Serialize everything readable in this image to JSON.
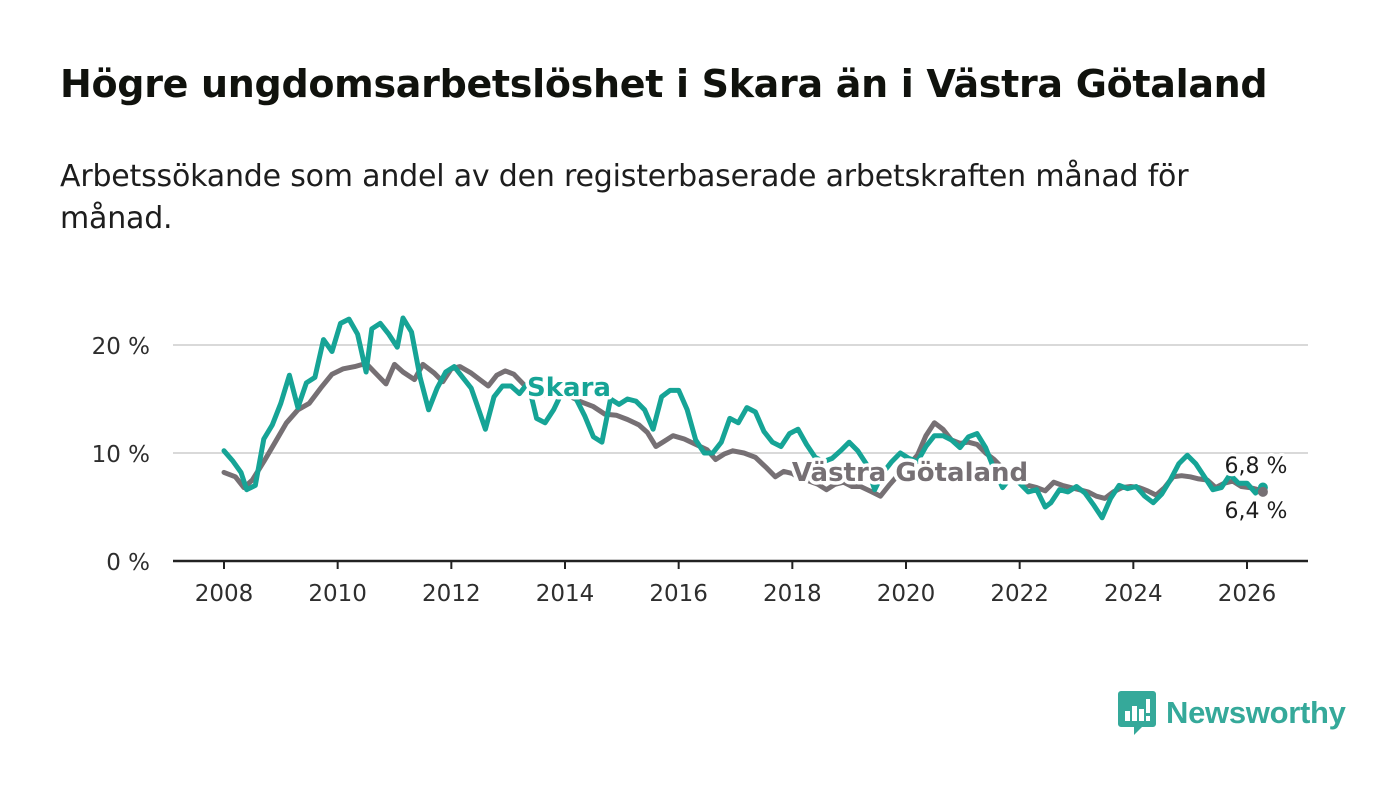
{
  "title": "Högre ungdomsarbetslöshet i Skara än i Västra Götaland",
  "subtitle": "Arbetssökande som andel av den registerbaserade arbetskraften månad för månad.",
  "brand": {
    "name": "Newsworthy",
    "color": "#35a99a"
  },
  "chart_data": {
    "type": "line",
    "title": "Högre ungdomsarbetslöshet i Skara än i Västra Götaland",
    "xlabel": "",
    "ylabel": "",
    "xlim": [
      2007.1,
      2027.1
    ],
    "ylim": [
      0,
      22
    ],
    "x_ticks": [
      2008,
      2010,
      2012,
      2014,
      2016,
      2018,
      2020,
      2022,
      2024,
      2026
    ],
    "y_ticks": [
      0,
      10,
      20
    ],
    "y_tick_labels": [
      "0 %",
      "10 %",
      "20 %"
    ],
    "grid": true,
    "series": [
      {
        "name": "Västra Götaland",
        "color": "#767074",
        "label": "Västra Götaland",
        "end_label": "6,4 %",
        "points": [
          [
            2008.0,
            8.2
          ],
          [
            2008.2,
            7.8
          ],
          [
            2008.35,
            6.8
          ],
          [
            2008.5,
            7.5
          ],
          [
            2008.7,
            9.2
          ],
          [
            2008.9,
            11.0
          ],
          [
            2009.1,
            12.8
          ],
          [
            2009.3,
            14.0
          ],
          [
            2009.5,
            14.6
          ],
          [
            2009.7,
            16.0
          ],
          [
            2009.9,
            17.3
          ],
          [
            2010.1,
            17.8
          ],
          [
            2010.3,
            18.0
          ],
          [
            2010.5,
            18.3
          ],
          [
            2010.7,
            17.2
          ],
          [
            2010.85,
            16.4
          ],
          [
            2011.0,
            18.2
          ],
          [
            2011.15,
            17.5
          ],
          [
            2011.35,
            16.8
          ],
          [
            2011.5,
            18.2
          ],
          [
            2011.7,
            17.4
          ],
          [
            2011.85,
            16.6
          ],
          [
            2012.0,
            17.8
          ],
          [
            2012.15,
            18.0
          ],
          [
            2012.35,
            17.4
          ],
          [
            2012.5,
            16.8
          ],
          [
            2012.65,
            16.2
          ],
          [
            2012.8,
            17.2
          ],
          [
            2012.95,
            17.6
          ],
          [
            2013.1,
            17.3
          ],
          [
            2013.3,
            16.2
          ],
          [
            2013.5,
            15.6
          ],
          [
            2013.7,
            15.3
          ],
          [
            2013.9,
            15.6
          ],
          [
            2014.1,
            15.2
          ],
          [
            2014.3,
            14.7
          ],
          [
            2014.5,
            14.3
          ],
          [
            2014.7,
            13.6
          ],
          [
            2014.9,
            13.5
          ],
          [
            2015.1,
            13.1
          ],
          [
            2015.3,
            12.6
          ],
          [
            2015.45,
            11.9
          ],
          [
            2015.6,
            10.6
          ],
          [
            2015.75,
            11.1
          ],
          [
            2015.9,
            11.6
          ],
          [
            2016.1,
            11.3
          ],
          [
            2016.3,
            10.8
          ],
          [
            2016.5,
            10.3
          ],
          [
            2016.65,
            9.4
          ],
          [
            2016.8,
            9.9
          ],
          [
            2016.95,
            10.2
          ],
          [
            2017.15,
            10.0
          ],
          [
            2017.35,
            9.6
          ],
          [
            2017.55,
            8.6
          ],
          [
            2017.7,
            7.8
          ],
          [
            2017.85,
            8.3
          ],
          [
            2018.0,
            8.1
          ],
          [
            2018.15,
            7.6
          ],
          [
            2018.3,
            7.4
          ],
          [
            2018.45,
            7.1
          ],
          [
            2018.6,
            6.6
          ],
          [
            2018.75,
            7.1
          ],
          [
            2018.9,
            7.3
          ],
          [
            2019.05,
            6.9
          ],
          [
            2019.2,
            6.9
          ],
          [
            2019.4,
            6.4
          ],
          [
            2019.55,
            6.0
          ],
          [
            2019.7,
            7.0
          ],
          [
            2019.85,
            7.9
          ],
          [
            2020.05,
            8.9
          ],
          [
            2020.2,
            9.8
          ],
          [
            2020.35,
            11.6
          ],
          [
            2020.5,
            12.8
          ],
          [
            2020.65,
            12.2
          ],
          [
            2020.8,
            11.2
          ],
          [
            2020.95,
            10.9
          ],
          [
            2021.1,
            11.0
          ],
          [
            2021.25,
            10.8
          ],
          [
            2021.4,
            10.0
          ],
          [
            2021.55,
            9.4
          ],
          [
            2021.7,
            8.6
          ],
          [
            2021.85,
            8.0
          ],
          [
            2022.0,
            7.4
          ],
          [
            2022.15,
            7.0
          ],
          [
            2022.3,
            6.8
          ],
          [
            2022.45,
            6.5
          ],
          [
            2022.6,
            7.3
          ],
          [
            2022.75,
            7.0
          ],
          [
            2022.9,
            6.8
          ],
          [
            2023.05,
            6.6
          ],
          [
            2023.2,
            6.4
          ],
          [
            2023.35,
            6.0
          ],
          [
            2023.5,
            5.8
          ],
          [
            2023.65,
            6.4
          ],
          [
            2023.8,
            6.8
          ],
          [
            2023.95,
            6.9
          ],
          [
            2024.1,
            6.8
          ],
          [
            2024.25,
            6.5
          ],
          [
            2024.4,
            6.1
          ],
          [
            2024.55,
            6.8
          ],
          [
            2024.7,
            7.8
          ],
          [
            2024.85,
            7.9
          ],
          [
            2025.0,
            7.8
          ],
          [
            2025.15,
            7.6
          ],
          [
            2025.3,
            7.5
          ],
          [
            2025.45,
            6.8
          ],
          [
            2025.6,
            7.2
          ],
          [
            2025.75,
            7.4
          ],
          [
            2025.9,
            6.9
          ],
          [
            2026.05,
            6.8
          ],
          [
            2026.2,
            6.6
          ],
          [
            2026.28,
            6.4
          ]
        ]
      },
      {
        "name": "Skara",
        "color": "#16a496",
        "label": "Skara",
        "end_label": "6,8 %",
        "points": [
          [
            2008.0,
            10.2
          ],
          [
            2008.15,
            9.3
          ],
          [
            2008.3,
            8.2
          ],
          [
            2008.4,
            6.6
          ],
          [
            2008.55,
            7.0
          ],
          [
            2008.7,
            11.3
          ],
          [
            2008.85,
            12.6
          ],
          [
            2009.0,
            14.6
          ],
          [
            2009.15,
            17.2
          ],
          [
            2009.3,
            14.2
          ],
          [
            2009.45,
            16.5
          ],
          [
            2009.6,
            17.0
          ],
          [
            2009.75,
            20.5
          ],
          [
            2009.9,
            19.4
          ],
          [
            2010.05,
            22.0
          ],
          [
            2010.2,
            22.4
          ],
          [
            2010.35,
            21.0
          ],
          [
            2010.5,
            17.5
          ],
          [
            2010.6,
            21.5
          ],
          [
            2010.75,
            22.0
          ],
          [
            2010.9,
            21.0
          ],
          [
            2011.05,
            19.8
          ],
          [
            2011.15,
            22.5
          ],
          [
            2011.3,
            21.2
          ],
          [
            2011.45,
            17.0
          ],
          [
            2011.6,
            14.0
          ],
          [
            2011.75,
            16.0
          ],
          [
            2011.9,
            17.5
          ],
          [
            2012.05,
            18.0
          ],
          [
            2012.2,
            17.0
          ],
          [
            2012.35,
            16.0
          ],
          [
            2012.45,
            14.5
          ],
          [
            2012.6,
            12.2
          ],
          [
            2012.75,
            15.2
          ],
          [
            2012.9,
            16.2
          ],
          [
            2013.05,
            16.2
          ],
          [
            2013.2,
            15.5
          ],
          [
            2013.35,
            16.5
          ],
          [
            2013.5,
            13.2
          ],
          [
            2013.65,
            12.8
          ],
          [
            2013.8,
            14.0
          ],
          [
            2014.0,
            16.2
          ],
          [
            2014.15,
            15.5
          ],
          [
            2014.35,
            13.4
          ],
          [
            2014.5,
            11.5
          ],
          [
            2014.65,
            11.0
          ],
          [
            2014.8,
            15.0
          ],
          [
            2014.95,
            14.5
          ],
          [
            2015.1,
            15.0
          ],
          [
            2015.25,
            14.8
          ],
          [
            2015.4,
            14.0
          ],
          [
            2015.55,
            12.2
          ],
          [
            2015.7,
            15.2
          ],
          [
            2015.85,
            15.8
          ],
          [
            2016.0,
            15.8
          ],
          [
            2016.15,
            14.0
          ],
          [
            2016.3,
            11.2
          ],
          [
            2016.45,
            10.0
          ],
          [
            2016.6,
            10.0
          ],
          [
            2016.75,
            11.0
          ],
          [
            2016.9,
            13.2
          ],
          [
            2017.05,
            12.8
          ],
          [
            2017.2,
            14.2
          ],
          [
            2017.35,
            13.8
          ],
          [
            2017.5,
            12.0
          ],
          [
            2017.65,
            11.0
          ],
          [
            2017.8,
            10.6
          ],
          [
            2017.95,
            11.8
          ],
          [
            2018.1,
            12.2
          ],
          [
            2018.25,
            10.8
          ],
          [
            2018.4,
            9.6
          ],
          [
            2018.55,
            9.2
          ],
          [
            2018.7,
            9.5
          ],
          [
            2018.85,
            10.2
          ],
          [
            2019.0,
            11.0
          ],
          [
            2019.15,
            10.2
          ],
          [
            2019.3,
            9.0
          ],
          [
            2019.45,
            6.6
          ],
          [
            2019.6,
            8.2
          ],
          [
            2019.75,
            9.2
          ],
          [
            2019.9,
            10.0
          ],
          [
            2020.05,
            9.5
          ],
          [
            2020.2,
            9.2
          ],
          [
            2020.35,
            10.6
          ],
          [
            2020.5,
            11.6
          ],
          [
            2020.65,
            11.6
          ],
          [
            2020.8,
            11.2
          ],
          [
            2020.95,
            10.5
          ],
          [
            2021.1,
            11.5
          ],
          [
            2021.25,
            11.8
          ],
          [
            2021.4,
            10.5
          ],
          [
            2021.55,
            8.5
          ],
          [
            2021.7,
            6.8
          ],
          [
            2021.85,
            7.8
          ],
          [
            2022.0,
            7.2
          ],
          [
            2022.15,
            6.4
          ],
          [
            2022.3,
            6.6
          ],
          [
            2022.45,
            5.0
          ],
          [
            2022.55,
            5.4
          ],
          [
            2022.7,
            6.6
          ],
          [
            2022.85,
            6.4
          ],
          [
            2023.0,
            6.9
          ],
          [
            2023.15,
            6.3
          ],
          [
            2023.3,
            5.2
          ],
          [
            2023.45,
            4.0
          ],
          [
            2023.6,
            5.8
          ],
          [
            2023.75,
            7.0
          ],
          [
            2023.9,
            6.7
          ],
          [
            2024.05,
            6.9
          ],
          [
            2024.2,
            6.0
          ],
          [
            2024.35,
            5.4
          ],
          [
            2024.5,
            6.2
          ],
          [
            2024.65,
            7.5
          ],
          [
            2024.8,
            9.0
          ],
          [
            2024.95,
            9.8
          ],
          [
            2025.1,
            9.0
          ],
          [
            2025.25,
            7.8
          ],
          [
            2025.4,
            6.6
          ],
          [
            2025.55,
            6.8
          ],
          [
            2025.7,
            8.0
          ],
          [
            2025.85,
            7.2
          ],
          [
            2026.0,
            7.2
          ],
          [
            2026.15,
            6.3
          ],
          [
            2026.28,
            6.8
          ]
        ]
      }
    ]
  }
}
